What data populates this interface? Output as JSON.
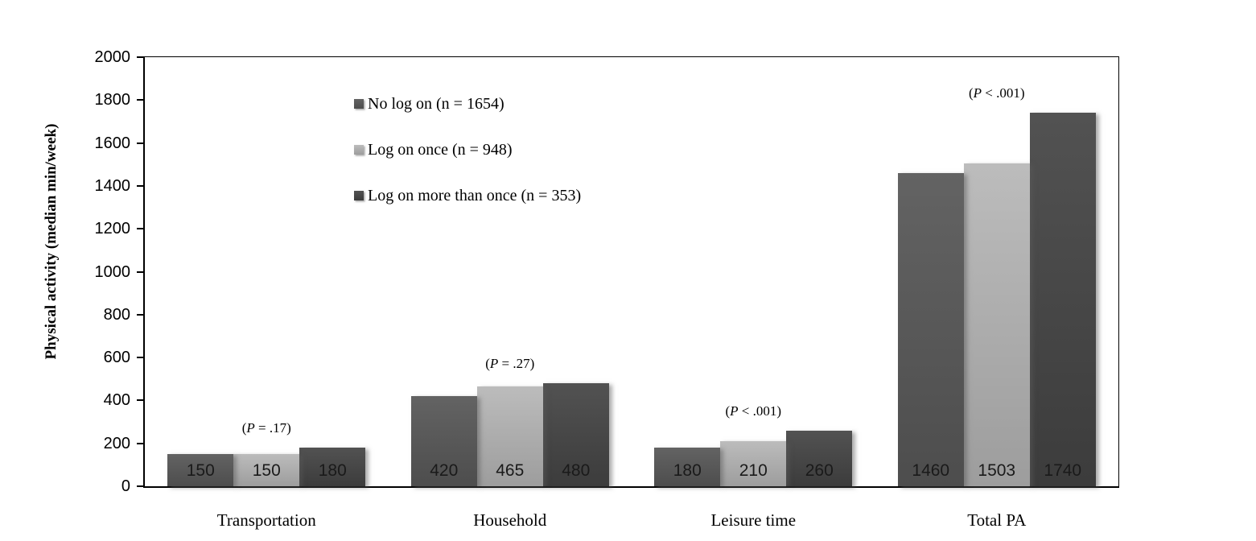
{
  "chart_data": {
    "type": "bar",
    "title": "",
    "ylabel": "Physical activity (median min/week)",
    "xlabel": "",
    "ylim": [
      0,
      2000
    ],
    "yticks": [
      0,
      200,
      400,
      600,
      800,
      1000,
      1200,
      1400,
      1600,
      1800,
      2000
    ],
    "grid": false,
    "legend_position": "inside-upper-left",
    "categories": [
      "Transportation",
      "Household",
      "Leisure time",
      "Total PA"
    ],
    "series": [
      {
        "name": "No log on (n = 1654)",
        "values": [
          150,
          420,
          180,
          1460
        ],
        "color": "#595959",
        "color_top": "#636363",
        "color_bottom": "#4d4d4d"
      },
      {
        "name": "Log on once (n = 948)",
        "values": [
          150,
          465,
          210,
          1503
        ],
        "color": "#a9a9a9",
        "color_top": "#bcbcbc",
        "color_bottom": "#9d9d9d"
      },
      {
        "name": "Log on more than once (n = 353)",
        "values": [
          180,
          480,
          260,
          1740
        ],
        "color": "#474747",
        "color_top": "#525252",
        "color_bottom": "#3c3c3c"
      }
    ],
    "p_labels": [
      "(P = .17)",
      "(P = .27)",
      "(P < .001)",
      "(P < .001)"
    ]
  }
}
